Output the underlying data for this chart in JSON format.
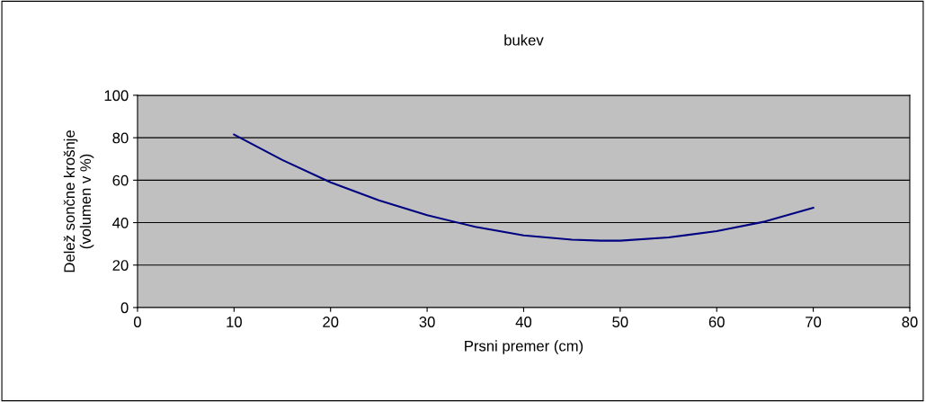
{
  "chart_data": {
    "type": "line",
    "title": "bukev",
    "xlabel": "Prsni premer (cm)",
    "ylabel": "Delež sončne krošnje\n(volumen v %)",
    "series": [
      {
        "color": "#000080",
        "x": [
          10,
          15,
          20,
          25,
          30,
          35,
          40,
          45,
          48,
          50,
          55,
          60,
          65,
          70
        ],
        "values": [
          81.5,
          69.5,
          59,
          50.5,
          43.5,
          38,
          34,
          32,
          31.5,
          31.5,
          33,
          36,
          40.5,
          47
        ]
      }
    ],
    "xlim": [
      0,
      80
    ],
    "xticks": [
      0,
      10,
      20,
      30,
      40,
      50,
      60,
      70,
      80
    ],
    "ylim": [
      0,
      100
    ],
    "yticks": [
      0,
      20,
      40,
      60,
      80,
      100
    ],
    "grid": "y",
    "legend": false,
    "marker": "none",
    "line_style": "solid"
  }
}
